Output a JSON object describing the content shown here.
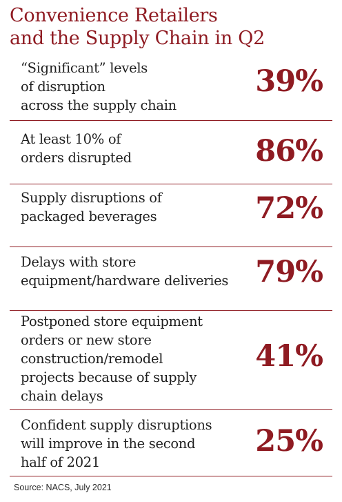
{
  "title": {
    "line1": "Convenience Retailers",
    "line2": "and the Supply Chain in Q2"
  },
  "chart_data": {
    "type": "table",
    "title": "Convenience Retailers and the Supply Chain in Q2",
    "rows": [
      {
        "label_lines": [
          "“Significant” levels",
          "of disruption",
          "across the supply chain"
        ],
        "value": 39,
        "display": "39%"
      },
      {
        "label_lines": [
          "At least 10% of",
          "orders disrupted"
        ],
        "value": 86,
        "display": "86%"
      },
      {
        "label_lines": [
          "Supply disruptions of",
          "packaged beverages"
        ],
        "value": 72,
        "display": "72%"
      },
      {
        "label_lines": [
          "Delays with store",
          "equipment/hardware deliveries"
        ],
        "value": 79,
        "display": "79%"
      },
      {
        "label_lines": [
          "Postponed store equipment",
          "orders or new store",
          "construction/remodel",
          "projects because of supply",
          "chain delays"
        ],
        "value": 41,
        "display": "41%"
      },
      {
        "label_lines": [
          "Confident supply disruptions",
          "will improve in the second",
          "half of 2021"
        ],
        "value": 25,
        "display": "25%"
      }
    ]
  },
  "source": "Source: NACS, July 2021",
  "colors": {
    "accent": "#8f1b22",
    "text": "#1f1f1f",
    "background": "#ffffff"
  }
}
